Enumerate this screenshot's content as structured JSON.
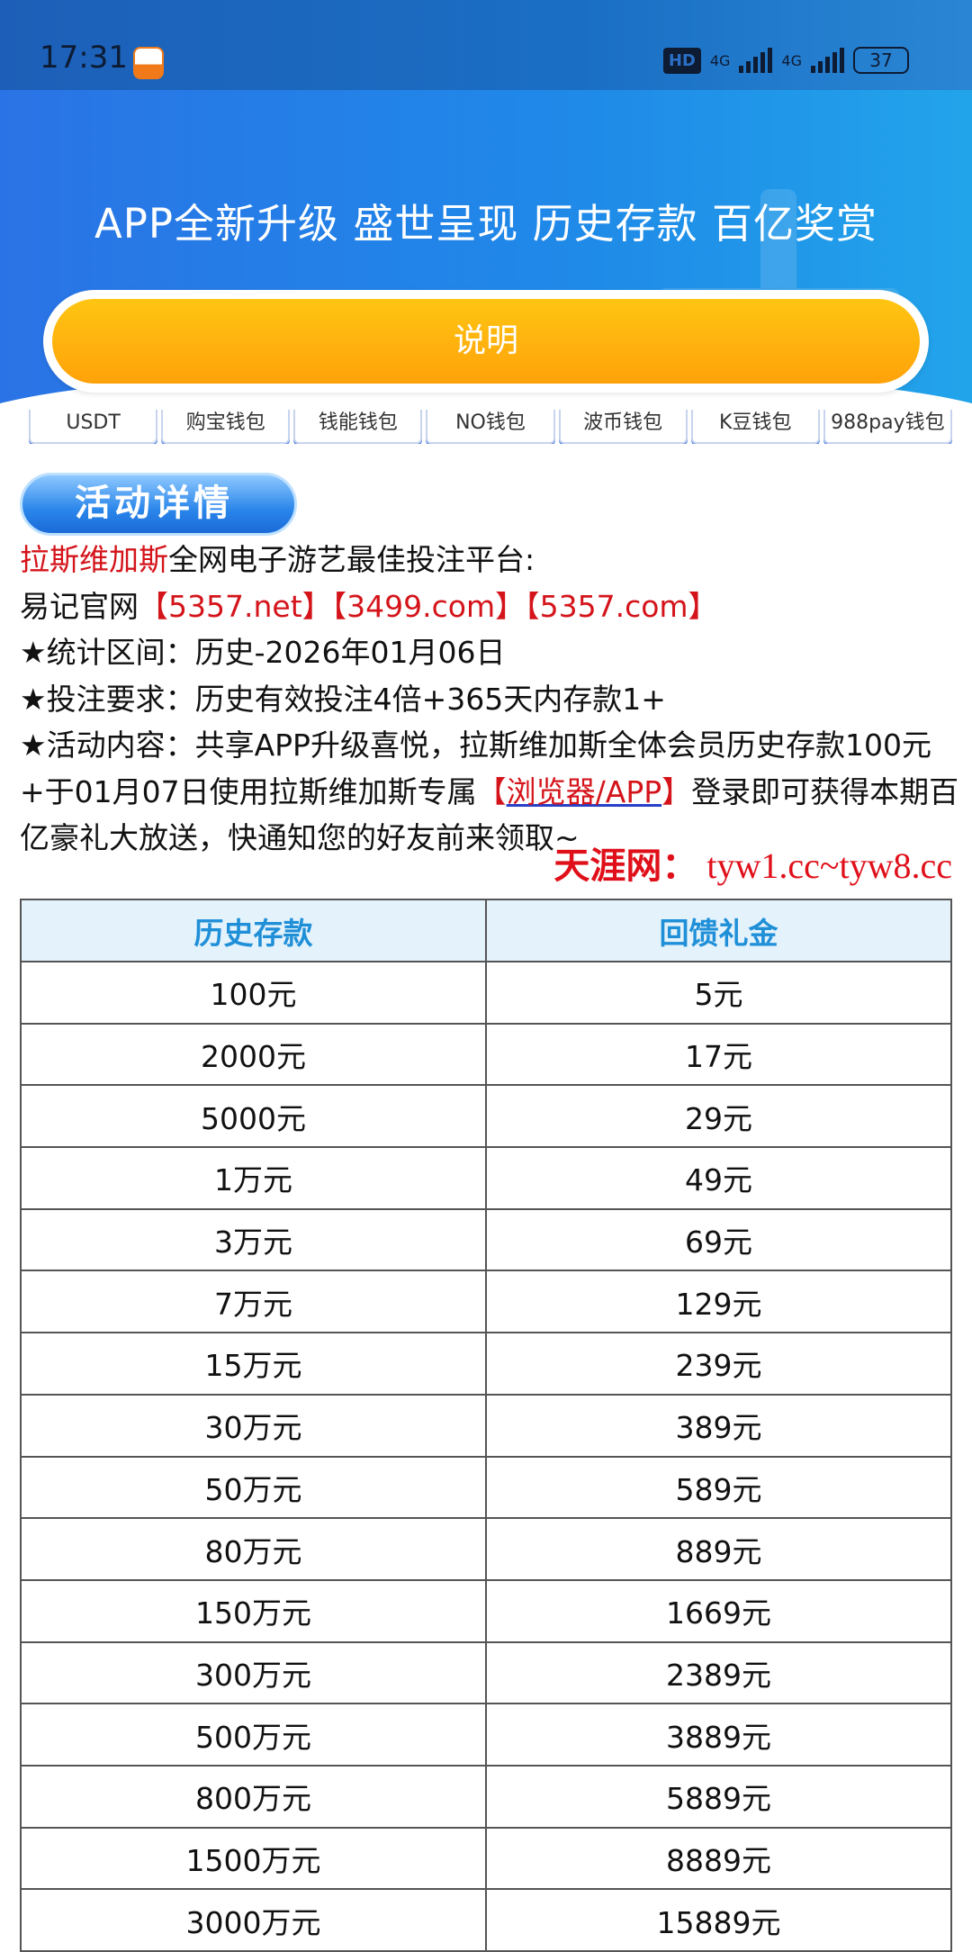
{
  "status_bar": {
    "time": "17:31",
    "hd": "HD",
    "network1": "4G",
    "network2": "4G",
    "battery": "37"
  },
  "hero": {
    "title": "APP全新升级 盛世呈现 历史存款 百亿奖赏",
    "button": "说明"
  },
  "wallets": [
    "USDT",
    "购宝钱包",
    "钱能钱包",
    "NO钱包",
    "波币钱包",
    "K豆钱包",
    "988pay钱包"
  ],
  "detail_button": "活动详情",
  "content": {
    "line1_brand": "拉斯维加斯",
    "line1_rest": "全网电子游艺最佳投注平台:",
    "line2_prefix": "易记官网",
    "line2_links": [
      "【5357.net】",
      "【3499.com】",
      "【5357.com】"
    ],
    "line3": "★统计区间：历史-2026年01月06日",
    "line4": "★投注要求：历史有效投注4倍+365天内存款1+",
    "line5_a": "★活动内容：共享APP升级喜悦，拉斯维加斯全体会员历史存款100元+于01月07日使用拉斯维加斯专属",
    "line5_bl": "【",
    "line5_link": "浏览器/APP",
    "line5_br": "】",
    "line5_b": "登录即可获得本期百亿豪礼大放送，快通知您的好友前来领取~"
  },
  "table": {
    "headers": [
      "历史存款",
      "回馈礼金"
    ],
    "rows": [
      [
        "100元",
        "5元"
      ],
      [
        "2000元",
        "17元"
      ],
      [
        "5000元",
        "29元"
      ],
      [
        "1万元",
        "49元"
      ],
      [
        "3万元",
        "69元"
      ],
      [
        "7万元",
        "129元"
      ],
      [
        "15万元",
        "239元"
      ],
      [
        "30万元",
        "389元"
      ],
      [
        "50万元",
        "589元"
      ],
      [
        "80万元",
        "889元"
      ],
      [
        "150万元",
        "1669元"
      ],
      [
        "300万元",
        "2389元"
      ],
      [
        "500万元",
        "3889元"
      ],
      [
        "800万元",
        "5889元"
      ],
      [
        "1500万元",
        "8889元"
      ],
      [
        "3000万元",
        "15889元"
      ]
    ]
  },
  "watermark": {
    "name": "天涯网：",
    "urls": "tyw1.cc~tyw8.cc"
  }
}
